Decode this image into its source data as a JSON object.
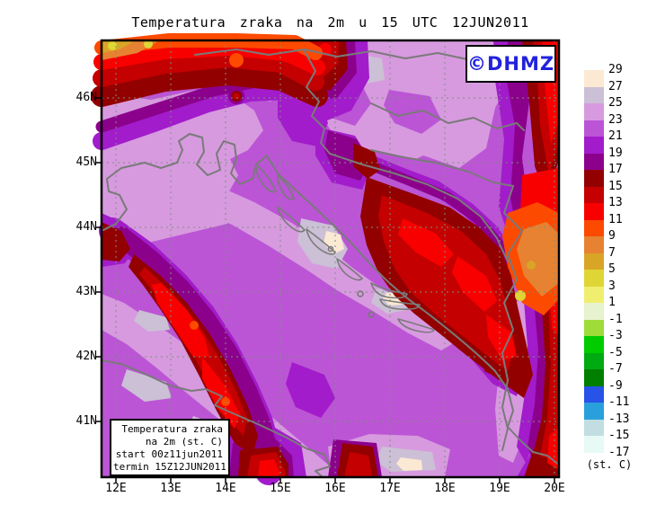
{
  "title": "Temperatura zraka na 2m u 15 UTC 12JUN2011",
  "logo": {
    "text": "©DHMZ",
    "color": "#2222DD"
  },
  "legend_box": {
    "line1": "Temperatura zraka",
    "line2": "na 2m (st. C)",
    "line3": "start 00z11jun2011",
    "line4": "termin 15Z12JUN2011"
  },
  "axes": {
    "lon_labels": [
      "12E",
      "13E",
      "14E",
      "15E",
      "16E",
      "17E",
      "18E",
      "19E",
      "20E"
    ],
    "lat_labels": [
      "46N",
      "45N",
      "44N",
      "43N",
      "42N",
      "41N"
    ]
  },
  "colorbar": {
    "unit_label": "(st. C)",
    "tick_labels": [
      29,
      27,
      25,
      23,
      21,
      19,
      17,
      15,
      13,
      11,
      9,
      7,
      5,
      3,
      1,
      -1,
      -3,
      -5,
      -7,
      -9,
      -11,
      -13,
      -15,
      -17
    ],
    "colors": [
      "#FBE9D3",
      "#CBC0D5",
      "#D79ADF",
      "#BB55D5",
      "#A21CCB",
      "#8C018C",
      "#930000",
      "#C40000",
      "#F90000",
      "#FC4A00",
      "#E68231",
      "#D9A527",
      "#DFD535",
      "#F0EE6E",
      "#E7F2CE",
      "#9EDC3A",
      "#00CC00",
      "#00AA11",
      "#007F00",
      "#2853E8",
      "#29A0DC",
      "#C2DEE2",
      "#E8FAF5"
    ]
  },
  "palette": {
    "medOrchid": "#BB55D5",
    "ltOrchid": "#D79ADF",
    "lav": "#CBC0D5",
    "cream": "#FBE9D3",
    "purple": "#A21CCB",
    "dkMagenta": "#8C018C",
    "maroon": "#930000",
    "dkRed": "#C40000",
    "red": "#F90000",
    "orangeRed": "#FC4A00",
    "orange": "#E68231",
    "goldenrod": "#D9A527",
    "yellow": "#DFD535",
    "coast": "#7A7A7A",
    "grid": "#7E917E"
  },
  "chart_data": {
    "type": "heatmap",
    "subtype": "filled-contour 2m air temperature map (GrADS style)",
    "title": "Temperatura zraka na 2m u 15 UTC 12JUN2011",
    "region": "Croatia / Adriatic Sea and surroundings",
    "x_ticks": [
      "12E",
      "13E",
      "14E",
      "15E",
      "16E",
      "17E",
      "18E",
      "19E",
      "20E"
    ],
    "y_ticks": [
      "46N",
      "45N",
      "44N",
      "43N",
      "42N",
      "41N"
    ],
    "lon_range_deg_e": [
      11.7,
      20.1
    ],
    "lat_range_deg_n": [
      40.2,
      46.9
    ],
    "unit": "st. C",
    "contour_levels": [
      -17,
      -15,
      -13,
      -11,
      -9,
      -7,
      -5,
      -3,
      -1,
      1,
      3,
      5,
      7,
      9,
      11,
      13,
      15,
      17,
      19,
      21,
      23,
      25,
      27,
      29
    ],
    "level_colors": [
      "#E8FAF5",
      "#C2DEE2",
      "#29A0DC",
      "#2853E8",
      "#007F00",
      "#00AA11",
      "#00CC00",
      "#9EDC3A",
      "#E7F2CE",
      "#F0EE6E",
      "#DFD535",
      "#D9A527",
      "#E68231",
      "#FC4A00",
      "#F90000",
      "#C40000",
      "#930000",
      "#8C018C",
      "#A21CCB",
      "#BB55D5",
      "#D79ADF",
      "#CBC0D5",
      "#FBE9D3"
    ],
    "legend_position": "right",
    "notable_values": {
      "adriatic_sea_degC": "21-23",
      "coastal_and_po_valley_degC": "23-27",
      "warmest_spots_degC": "27-29 (central Dalmatian islands, coast patches)",
      "dinaric_and_apennine_mountains_degC": "9-17",
      "coldest_spots_degC": "3-7 (highest peaks, top-left Alps and Bosnia)"
    }
  }
}
